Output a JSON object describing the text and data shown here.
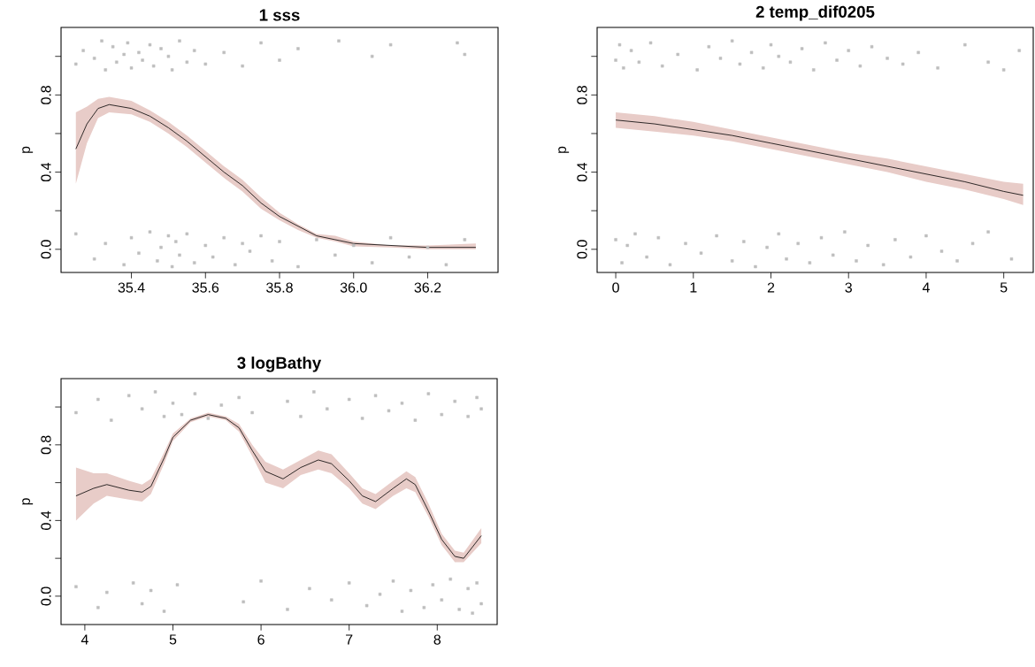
{
  "chart_data": [
    {
      "type": "line",
      "title": "1  sss",
      "ylabel": "p",
      "xlim": [
        35.21,
        36.39
      ],
      "ylim": [
        -0.12,
        1.15
      ],
      "xticks": [
        35.4,
        35.6,
        35.8,
        {
          "value": 36,
          "label": "36.0"
        },
        36.2
      ],
      "yticks": [
        {
          "value": 0,
          "label": "0.0"
        },
        {
          "value": 0.2,
          "label": null
        },
        {
          "value": 0.4,
          "label": "0.4"
        },
        {
          "value": 0.6,
          "label": null
        },
        {
          "value": 0.8,
          "label": "0.8"
        },
        {
          "value": 1.0,
          "label": null
        }
      ],
      "grid": false,
      "legend": false,
      "series": [
        {
          "type": "scatter",
          "marker": "square",
          "color": "#bebebe",
          "x": [
            35.25,
            35.27,
            35.3,
            35.32,
            35.33,
            35.35,
            35.36,
            35.38,
            35.39,
            35.4,
            35.42,
            35.43,
            35.45,
            35.46,
            35.48,
            35.5,
            35.51,
            35.53,
            35.55,
            35.57,
            35.6,
            35.65,
            35.7,
            35.75,
            35.8,
            35.85,
            35.96,
            36.05,
            36.1,
            36.28,
            36.3,
            35.25,
            35.3,
            35.33,
            35.38,
            35.4,
            35.42,
            35.45,
            35.47,
            35.48,
            35.5,
            35.51,
            35.52,
            35.53,
            35.55,
            35.57,
            35.6,
            35.62,
            35.65,
            35.68,
            35.7,
            35.72,
            35.75,
            35.78,
            35.8,
            35.85,
            35.9,
            35.95,
            36.0,
            36.05,
            36.1,
            36.15,
            36.2,
            36.25,
            36.3
          ],
          "values": [
            0.96,
            1.03,
            0.99,
            1.08,
            0.93,
            1.05,
            0.97,
            1.01,
            1.07,
            0.94,
            1.02,
            0.98,
            1.06,
            0.95,
            1.04,
            1.0,
            0.93,
            1.08,
            0.97,
            1.03,
            0.96,
            1.02,
            0.95,
            1.07,
            0.98,
            1.04,
            1.08,
            1.0,
            1.06,
            1.07,
            1.01,
            0.08,
            -0.05,
            0.03,
            -0.08,
            0.06,
            -0.02,
            0.09,
            -0.06,
            0.01,
            0.07,
            -0.09,
            0.04,
            -0.03,
            0.08,
            -0.07,
            0.02,
            -0.04,
            0.06,
            -0.08,
            0.03,
            -0.01,
            0.07,
            -0.06,
            0.04,
            -0.09,
            0.05,
            -0.03,
            0.02,
            -0.07,
            0.06,
            -0.04,
            0.01,
            -0.08,
            0.05
          ]
        },
        {
          "type": "line",
          "marker": "none",
          "color": "#000000",
          "x": [
            35.25,
            35.28,
            35.31,
            35.34,
            35.4,
            35.45,
            35.5,
            35.55,
            35.6,
            35.65,
            35.7,
            35.75,
            35.8,
            35.85,
            35.9,
            35.95,
            36.0,
            36.1,
            36.2,
            36.33
          ],
          "values": [
            0.52,
            0.65,
            0.73,
            0.75,
            0.73,
            0.69,
            0.63,
            0.56,
            0.48,
            0.4,
            0.33,
            0.24,
            0.17,
            0.12,
            0.07,
            0.05,
            0.03,
            0.02,
            0.01,
            0.01
          ],
          "lower": [
            0.34,
            0.55,
            0.68,
            0.71,
            0.7,
            0.66,
            0.6,
            0.53,
            0.45,
            0.37,
            0.3,
            0.21,
            0.15,
            0.1,
            0.06,
            0.04,
            0.015,
            0.01,
            0.0,
            0.0
          ],
          "upper": [
            0.71,
            0.74,
            0.78,
            0.79,
            0.77,
            0.72,
            0.66,
            0.59,
            0.51,
            0.43,
            0.36,
            0.27,
            0.19,
            0.13,
            0.08,
            0.07,
            0.04,
            0.02,
            0.02,
            0.03
          ]
        }
      ]
    },
    {
      "type": "line",
      "title": "2  temp_dif0205",
      "ylabel": "p",
      "xlim": [
        -0.24,
        5.38
      ],
      "ylim": [
        -0.12,
        1.15
      ],
      "xticks": [
        0,
        1,
        2,
        3,
        4,
        5
      ],
      "yticks": [
        {
          "value": 0,
          "label": "0.0"
        },
        {
          "value": 0.2,
          "label": null
        },
        {
          "value": 0.4,
          "label": "0.4"
        },
        {
          "value": 0.6,
          "label": null
        },
        {
          "value": 0.8,
          "label": "0.8"
        },
        {
          "value": 1.0,
          "label": null
        }
      ],
      "grid": false,
      "legend": false,
      "series": [
        {
          "type": "scatter",
          "marker": "square",
          "color": "#bebebe",
          "x": [
            0.0,
            0.05,
            0.1,
            0.2,
            0.3,
            0.45,
            0.6,
            0.8,
            1.05,
            1.2,
            1.35,
            1.5,
            1.6,
            1.75,
            1.9,
            2.0,
            2.1,
            2.25,
            2.4,
            2.55,
            2.7,
            2.85,
            3.0,
            3.15,
            3.3,
            3.5,
            3.7,
            3.9,
            4.15,
            4.5,
            4.8,
            5.0,
            5.2,
            0.0,
            0.08,
            0.15,
            0.25,
            0.4,
            0.55,
            0.7,
            0.9,
            1.1,
            1.3,
            1.5,
            1.65,
            1.8,
            1.95,
            2.1,
            2.2,
            2.35,
            2.5,
            2.65,
            2.8,
            2.95,
            3.1,
            3.25,
            3.45,
            3.6,
            3.8,
            4.0,
            4.2,
            4.4,
            4.6,
            4.8,
            5.1
          ],
          "values": [
            0.98,
            1.06,
            0.94,
            1.03,
            0.97,
            1.07,
            0.95,
            1.01,
            0.93,
            1.05,
            0.99,
            1.08,
            0.96,
            1.02,
            0.94,
            1.06,
            1.0,
            0.97,
            1.04,
            0.93,
            1.07,
            0.98,
            1.03,
            0.95,
            1.05,
            0.99,
            0.96,
            1.02,
            0.94,
            1.06,
            0.97,
            0.93,
            1.03,
            0.05,
            -0.07,
            0.02,
            0.08,
            -0.04,
            0.06,
            -0.08,
            0.03,
            -0.02,
            0.07,
            -0.06,
            0.04,
            -0.09,
            0.01,
            0.08,
            -0.05,
            0.03,
            -0.07,
            0.06,
            -0.03,
            0.09,
            -0.06,
            0.02,
            -0.08,
            0.05,
            -0.04,
            0.07,
            -0.01,
            -0.06,
            0.03,
            0.09,
            -0.05
          ]
        },
        {
          "type": "line",
          "marker": "none",
          "color": "#000000",
          "x": [
            0.0,
            0.5,
            1.0,
            1.5,
            2.0,
            2.5,
            3.0,
            3.5,
            4.0,
            4.5,
            5.0,
            5.25
          ],
          "values": [
            0.67,
            0.65,
            0.62,
            0.59,
            0.55,
            0.51,
            0.47,
            0.43,
            0.39,
            0.35,
            0.3,
            0.28
          ],
          "lower": [
            0.63,
            0.61,
            0.59,
            0.56,
            0.52,
            0.48,
            0.44,
            0.4,
            0.35,
            0.31,
            0.26,
            0.23
          ],
          "upper": [
            0.71,
            0.69,
            0.66,
            0.62,
            0.58,
            0.54,
            0.5,
            0.47,
            0.43,
            0.39,
            0.35,
            0.34
          ]
        }
      ]
    },
    {
      "type": "line",
      "title": "3  logBathy",
      "ylabel": "p",
      "xlim": [
        3.73,
        8.68
      ],
      "ylim": [
        -0.15,
        1.15
      ],
      "xticks": [
        4,
        5,
        6,
        7,
        8
      ],
      "yticks": [
        {
          "value": 0,
          "label": "0.0"
        },
        {
          "value": 0.2,
          "label": null
        },
        {
          "value": 0.4,
          "label": "0.4"
        },
        {
          "value": 0.6,
          "label": null
        },
        {
          "value": 0.8,
          "label": "0.8"
        },
        {
          "value": 1.0,
          "label": null
        }
      ],
      "grid": false,
      "legend": false,
      "series": [
        {
          "type": "scatter",
          "marker": "square",
          "color": "#bebebe",
          "x": [
            3.9,
            4.15,
            4.3,
            4.5,
            4.65,
            4.8,
            4.9,
            5.0,
            5.1,
            5.25,
            5.4,
            5.55,
            5.75,
            5.9,
            6.3,
            6.45,
            6.6,
            6.75,
            7.0,
            7.15,
            7.3,
            7.45,
            7.6,
            7.75,
            7.9,
            8.05,
            8.2,
            8.35,
            8.45,
            8.5,
            3.9,
            4.15,
            4.25,
            4.55,
            4.65,
            4.75,
            4.9,
            5.05,
            5.8,
            6.0,
            6.3,
            6.55,
            6.8,
            7.0,
            7.2,
            7.35,
            7.5,
            7.6,
            7.7,
            7.85,
            7.95,
            8.05,
            8.15,
            8.25,
            8.35,
            8.4,
            8.45,
            8.5
          ],
          "values": [
            0.97,
            1.04,
            0.93,
            1.06,
            0.99,
            1.08,
            0.95,
            1.02,
            0.96,
            1.07,
            0.94,
            1.01,
            1.05,
            0.97,
            1.03,
            0.95,
            1.08,
            0.99,
            1.04,
            0.94,
            1.06,
            0.98,
            1.02,
            0.93,
            1.07,
            0.96,
            1.03,
            0.95,
            1.05,
            0.99,
            0.05,
            -0.06,
            0.02,
            0.07,
            -0.04,
            0.03,
            -0.08,
            0.06,
            -0.03,
            0.08,
            -0.07,
            0.04,
            -0.02,
            0.07,
            -0.05,
            0.01,
            0.08,
            -0.08,
            0.03,
            -0.06,
            0.06,
            -0.02,
            0.09,
            -0.07,
            0.04,
            -0.09,
            0.07,
            -0.04
          ]
        },
        {
          "type": "line",
          "marker": "none",
          "color": "#000000",
          "x": [
            3.9,
            4.1,
            4.25,
            4.5,
            4.65,
            4.75,
            4.9,
            5.0,
            5.2,
            5.4,
            5.6,
            5.75,
            5.9,
            6.05,
            6.25,
            6.45,
            6.65,
            6.8,
            7.0,
            7.15,
            7.3,
            7.5,
            7.65,
            7.75,
            7.9,
            8.05,
            8.2,
            8.3,
            8.5
          ],
          "values": [
            0.53,
            0.57,
            0.59,
            0.56,
            0.55,
            0.58,
            0.73,
            0.84,
            0.93,
            0.96,
            0.94,
            0.89,
            0.77,
            0.66,
            0.62,
            0.68,
            0.72,
            0.7,
            0.61,
            0.53,
            0.5,
            0.57,
            0.62,
            0.59,
            0.45,
            0.3,
            0.21,
            0.2,
            0.32
          ],
          "lower": [
            0.4,
            0.49,
            0.53,
            0.51,
            0.5,
            0.54,
            0.7,
            0.82,
            0.92,
            0.95,
            0.93,
            0.87,
            0.74,
            0.6,
            0.57,
            0.64,
            0.67,
            0.65,
            0.57,
            0.49,
            0.46,
            0.53,
            0.57,
            0.55,
            0.42,
            0.27,
            0.18,
            0.18,
            0.28
          ],
          "upper": [
            0.68,
            0.65,
            0.65,
            0.61,
            0.59,
            0.62,
            0.76,
            0.86,
            0.94,
            0.97,
            0.95,
            0.91,
            0.8,
            0.71,
            0.67,
            0.72,
            0.77,
            0.75,
            0.65,
            0.57,
            0.54,
            0.61,
            0.66,
            0.63,
            0.49,
            0.33,
            0.24,
            0.23,
            0.36
          ]
        }
      ]
    }
  ]
}
